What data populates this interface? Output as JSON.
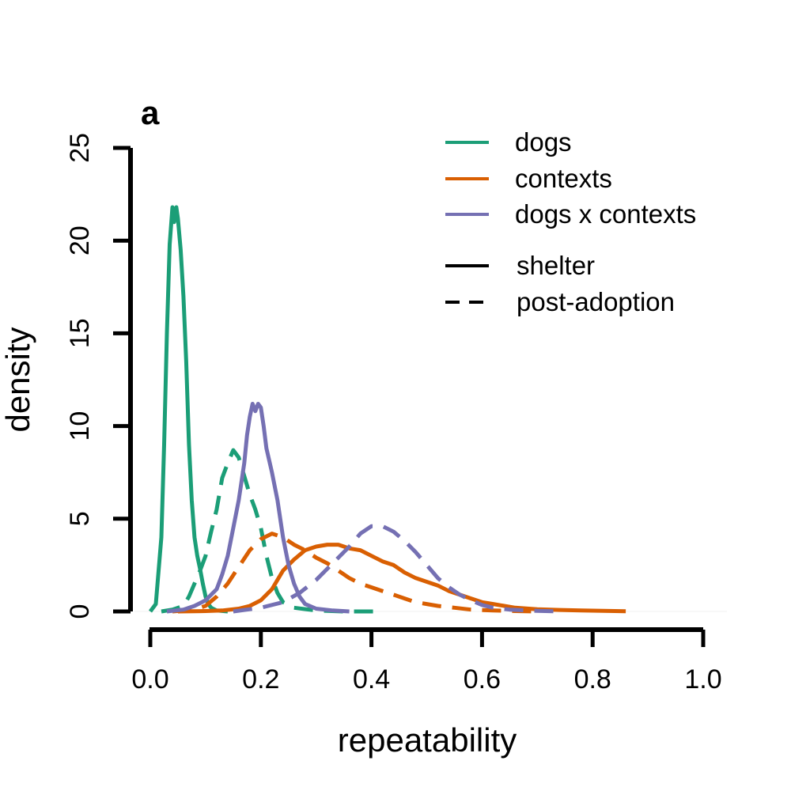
{
  "chart_data": {
    "type": "line",
    "title": "",
    "panel_label": "a",
    "xlabel": "repeatability",
    "ylabel": "density",
    "xlim": [
      0,
      1
    ],
    "ylim": [
      0,
      25
    ],
    "x_ticks": [
      {
        "value": 0.0,
        "label": "0.0"
      },
      {
        "value": 0.2,
        "label": "0.2"
      },
      {
        "value": 0.4,
        "label": "0.4"
      },
      {
        "value": 0.6,
        "label": "0.6"
      },
      {
        "value": 0.8,
        "label": "0.8"
      },
      {
        "value": 1.0,
        "label": "1.0"
      }
    ],
    "y_ticks": [
      {
        "value": 0,
        "label": "0"
      },
      {
        "value": 5,
        "label": "5"
      },
      {
        "value": 10,
        "label": "10"
      },
      {
        "value": 15,
        "label": "15"
      },
      {
        "value": 20,
        "label": "20"
      },
      {
        "value": 25,
        "label": "25"
      }
    ],
    "grid": false,
    "legend_position": "top-right",
    "legend": {
      "colors": [
        {
          "label": "dogs",
          "color": "#1b9e77"
        },
        {
          "label": "contexts",
          "color": "#d95f02"
        },
        {
          "label": "dogs x contexts",
          "color": "#7570b3"
        }
      ],
      "styles": [
        {
          "label": "shelter",
          "dash": "solid"
        },
        {
          "label": "post-adoption",
          "dash": "dashed"
        }
      ]
    },
    "series": [
      {
        "name": "dogs",
        "group": "shelter",
        "color": "#1b9e77",
        "dash": "solid",
        "points": [
          [
            0.0,
            0.0
          ],
          [
            0.01,
            0.4
          ],
          [
            0.02,
            4
          ],
          [
            0.025,
            9
          ],
          [
            0.03,
            15
          ],
          [
            0.035,
            19.8
          ],
          [
            0.04,
            21.8
          ],
          [
            0.043,
            21.0
          ],
          [
            0.047,
            21.8
          ],
          [
            0.05,
            21.2
          ],
          [
            0.055,
            19.5
          ],
          [
            0.06,
            17
          ],
          [
            0.065,
            13.5
          ],
          [
            0.07,
            9
          ],
          [
            0.075,
            6
          ],
          [
            0.08,
            4
          ],
          [
            0.085,
            3
          ],
          [
            0.09,
            2.3
          ],
          [
            0.095,
            1.5
          ],
          [
            0.1,
            0.8
          ],
          [
            0.105,
            0.4
          ],
          [
            0.11,
            0.2
          ],
          [
            0.12,
            0.05
          ],
          [
            0.14,
            0.0
          ]
        ]
      },
      {
        "name": "dogs",
        "group": "post-adoption",
        "color": "#1b9e77",
        "dash": "dashed",
        "points": [
          [
            0.02,
            0.0
          ],
          [
            0.04,
            0.1
          ],
          [
            0.06,
            0.3
          ],
          [
            0.07,
            0.8
          ],
          [
            0.08,
            1.5
          ],
          [
            0.09,
            2.2
          ],
          [
            0.1,
            3
          ],
          [
            0.11,
            4.3
          ],
          [
            0.12,
            5.5
          ],
          [
            0.13,
            7.2
          ],
          [
            0.14,
            8.0
          ],
          [
            0.15,
            8.7
          ],
          [
            0.16,
            8.3
          ],
          [
            0.17,
            7.3
          ],
          [
            0.18,
            6.3
          ],
          [
            0.19,
            5.5
          ],
          [
            0.2,
            4.5
          ],
          [
            0.21,
            3.0
          ],
          [
            0.22,
            1.8
          ],
          [
            0.23,
            1.0
          ],
          [
            0.24,
            0.5
          ],
          [
            0.26,
            0.2
          ],
          [
            0.3,
            0.05
          ],
          [
            0.35,
            0.0
          ],
          [
            0.42,
            0.0
          ]
        ]
      },
      {
        "name": "contexts",
        "group": "shelter",
        "color": "#d95f02",
        "dash": "solid",
        "points": [
          [
            0.05,
            0.0
          ],
          [
            0.1,
            0.02
          ],
          [
            0.13,
            0.05
          ],
          [
            0.16,
            0.15
          ],
          [
            0.18,
            0.3
          ],
          [
            0.2,
            0.6
          ],
          [
            0.22,
            1.2
          ],
          [
            0.24,
            2.2
          ],
          [
            0.26,
            2.8
          ],
          [
            0.28,
            3.3
          ],
          [
            0.3,
            3.5
          ],
          [
            0.32,
            3.6
          ],
          [
            0.34,
            3.6
          ],
          [
            0.36,
            3.4
          ],
          [
            0.38,
            3.3
          ],
          [
            0.4,
            3.0
          ],
          [
            0.42,
            2.7
          ],
          [
            0.44,
            2.5
          ],
          [
            0.46,
            2.1
          ],
          [
            0.48,
            1.8
          ],
          [
            0.5,
            1.6
          ],
          [
            0.52,
            1.4
          ],
          [
            0.54,
            1.1
          ],
          [
            0.56,
            0.9
          ],
          [
            0.58,
            0.7
          ],
          [
            0.6,
            0.5
          ],
          [
            0.62,
            0.4
          ],
          [
            0.64,
            0.3
          ],
          [
            0.66,
            0.2
          ],
          [
            0.7,
            0.12
          ],
          [
            0.74,
            0.08
          ],
          [
            0.78,
            0.05
          ],
          [
            0.82,
            0.03
          ],
          [
            0.86,
            0.01
          ]
        ]
      },
      {
        "name": "contexts",
        "group": "post-adoption",
        "color": "#d95f02",
        "dash": "dashed",
        "points": [
          [
            0.04,
            0.0
          ],
          [
            0.08,
            0.1
          ],
          [
            0.1,
            0.3
          ],
          [
            0.12,
            0.8
          ],
          [
            0.14,
            1.5
          ],
          [
            0.16,
            2.4
          ],
          [
            0.18,
            3.3
          ],
          [
            0.2,
            3.9
          ],
          [
            0.22,
            4.2
          ],
          [
            0.24,
            4.0
          ],
          [
            0.26,
            3.6
          ],
          [
            0.28,
            3.3
          ],
          [
            0.3,
            2.9
          ],
          [
            0.32,
            2.6
          ],
          [
            0.34,
            2.2
          ],
          [
            0.36,
            1.8
          ],
          [
            0.38,
            1.5
          ],
          [
            0.4,
            1.3
          ],
          [
            0.42,
            1.1
          ],
          [
            0.44,
            0.9
          ],
          [
            0.46,
            0.7
          ],
          [
            0.48,
            0.5
          ],
          [
            0.5,
            0.4
          ],
          [
            0.52,
            0.3
          ],
          [
            0.55,
            0.2
          ],
          [
            0.58,
            0.1
          ],
          [
            0.62,
            0.05
          ],
          [
            0.66,
            0.02
          ],
          [
            0.7,
            0.0
          ]
        ]
      },
      {
        "name": "dogs x contexts",
        "group": "shelter",
        "color": "#7570b3",
        "dash": "solid",
        "points": [
          [
            0.03,
            0.0
          ],
          [
            0.06,
            0.1
          ],
          [
            0.08,
            0.3
          ],
          [
            0.1,
            0.6
          ],
          [
            0.12,
            1.2
          ],
          [
            0.13,
            2.0
          ],
          [
            0.14,
            3.0
          ],
          [
            0.15,
            4.5
          ],
          [
            0.16,
            6.0
          ],
          [
            0.17,
            8.0
          ],
          [
            0.175,
            9.5
          ],
          [
            0.18,
            10.5
          ],
          [
            0.185,
            11.2
          ],
          [
            0.19,
            10.8
          ],
          [
            0.195,
            11.2
          ],
          [
            0.2,
            11.0
          ],
          [
            0.205,
            10.0
          ],
          [
            0.21,
            8.8
          ],
          [
            0.22,
            7.5
          ],
          [
            0.23,
            6.0
          ],
          [
            0.24,
            4.0
          ],
          [
            0.25,
            2.5
          ],
          [
            0.26,
            1.5
          ],
          [
            0.27,
            0.8
          ],
          [
            0.28,
            0.4
          ],
          [
            0.3,
            0.15
          ],
          [
            0.33,
            0.05
          ],
          [
            0.36,
            0.0
          ]
        ]
      },
      {
        "name": "dogs x contexts",
        "group": "post-adoption",
        "color": "#7570b3",
        "dash": "dashed",
        "points": [
          [
            0.15,
            0.0
          ],
          [
            0.2,
            0.2
          ],
          [
            0.24,
            0.5
          ],
          [
            0.27,
            1.0
          ],
          [
            0.3,
            1.7
          ],
          [
            0.33,
            2.6
          ],
          [
            0.36,
            3.5
          ],
          [
            0.38,
            4.2
          ],
          [
            0.4,
            4.6
          ],
          [
            0.42,
            4.6
          ],
          [
            0.44,
            4.3
          ],
          [
            0.46,
            3.8
          ],
          [
            0.48,
            3.2
          ],
          [
            0.5,
            2.5
          ],
          [
            0.52,
            1.8
          ],
          [
            0.54,
            1.3
          ],
          [
            0.56,
            0.9
          ],
          [
            0.58,
            0.6
          ],
          [
            0.6,
            0.35
          ],
          [
            0.62,
            0.2
          ],
          [
            0.65,
            0.1
          ],
          [
            0.7,
            0.03
          ],
          [
            0.74,
            0.0
          ]
        ]
      }
    ]
  }
}
